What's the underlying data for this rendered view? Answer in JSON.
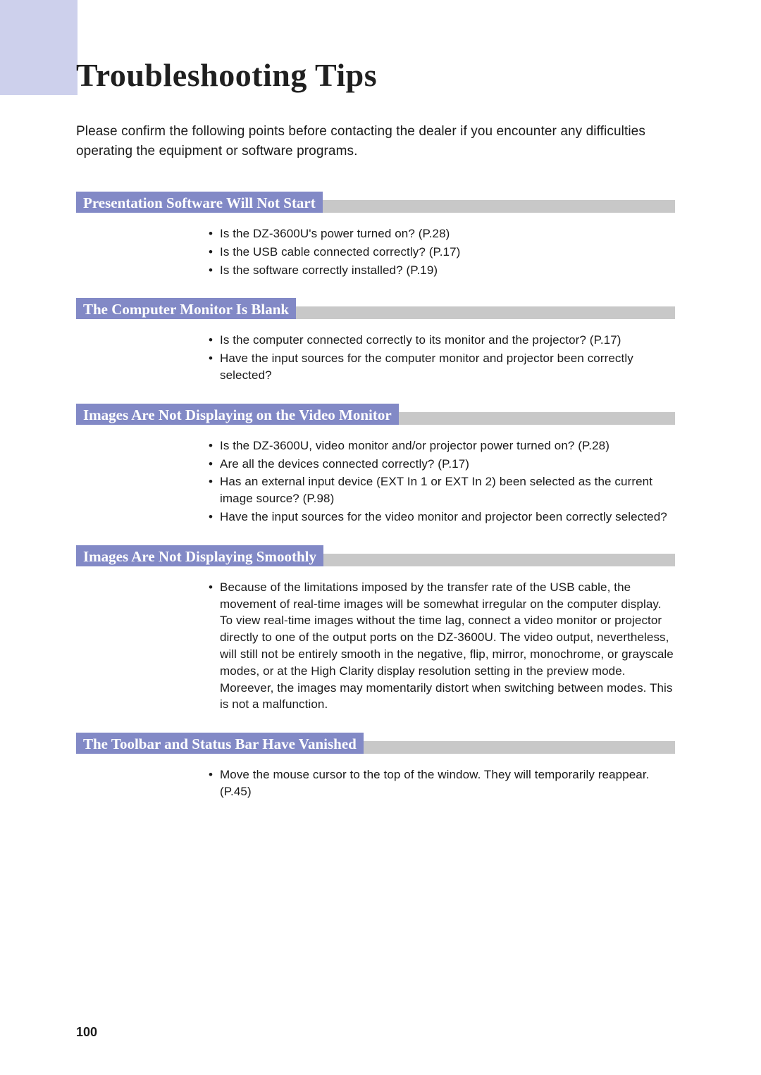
{
  "colors": {
    "tab": "#cdd0ec",
    "section_header": "#8289c6",
    "section_grey": "#c8c8c8",
    "text": "#1a1a1a",
    "background": "#ffffff"
  },
  "page": {
    "title": "Troubleshooting Tips",
    "intro": "Please confirm the following points before contacting the dealer if you encounter any difficulties operating the equipment or software programs.",
    "number": "100"
  },
  "sections": [
    {
      "heading": "Presentation Software Will Not Start",
      "items": [
        "Is the DZ-3600U's power turned on? (P.28)",
        "Is the USB cable connected correctly? (P.17)",
        "Is the software correctly installed? (P.19)"
      ]
    },
    {
      "heading": "The Computer Monitor Is Blank",
      "items": [
        "Is the computer connected correctly to its monitor and the projector? (P.17)",
        "Have the input sources for the computer monitor and projector been correctly selected?"
      ]
    },
    {
      "heading": "Images Are Not Displaying on the Video Monitor",
      "items": [
        "Is the DZ-3600U, video monitor and/or projector power turned on? (P.28)",
        "Are all the devices connected correctly? (P.17)",
        "Has an external input device (EXT In 1 or EXT In 2) been selected as the current image source? (P.98)",
        "Have the input sources for the video monitor and projector been correctly selected?"
      ]
    },
    {
      "heading": "Images Are Not Displaying Smoothly",
      "items": [
        "Because of the limitations imposed by the transfer rate of the USB cable, the movement of real-time images will be somewhat irregular on the computer display. To view real-time images without the time lag, connect a video monitor or projector directly to one of the output ports on the DZ-3600U. The video output, nevertheless, will still not be entirely smooth in the negative, flip, mirror, monochrome, or grayscale modes, or at the High Clarity display resolution setting in the preview mode. Moreever, the images may momentarily distort when switching between modes. This is not a malfunction."
      ]
    },
    {
      "heading": "The Toolbar and Status Bar Have Vanished",
      "items": [
        "Move the mouse cursor to the top of the window. They will temporarily reappear. (P.45)"
      ]
    }
  ]
}
